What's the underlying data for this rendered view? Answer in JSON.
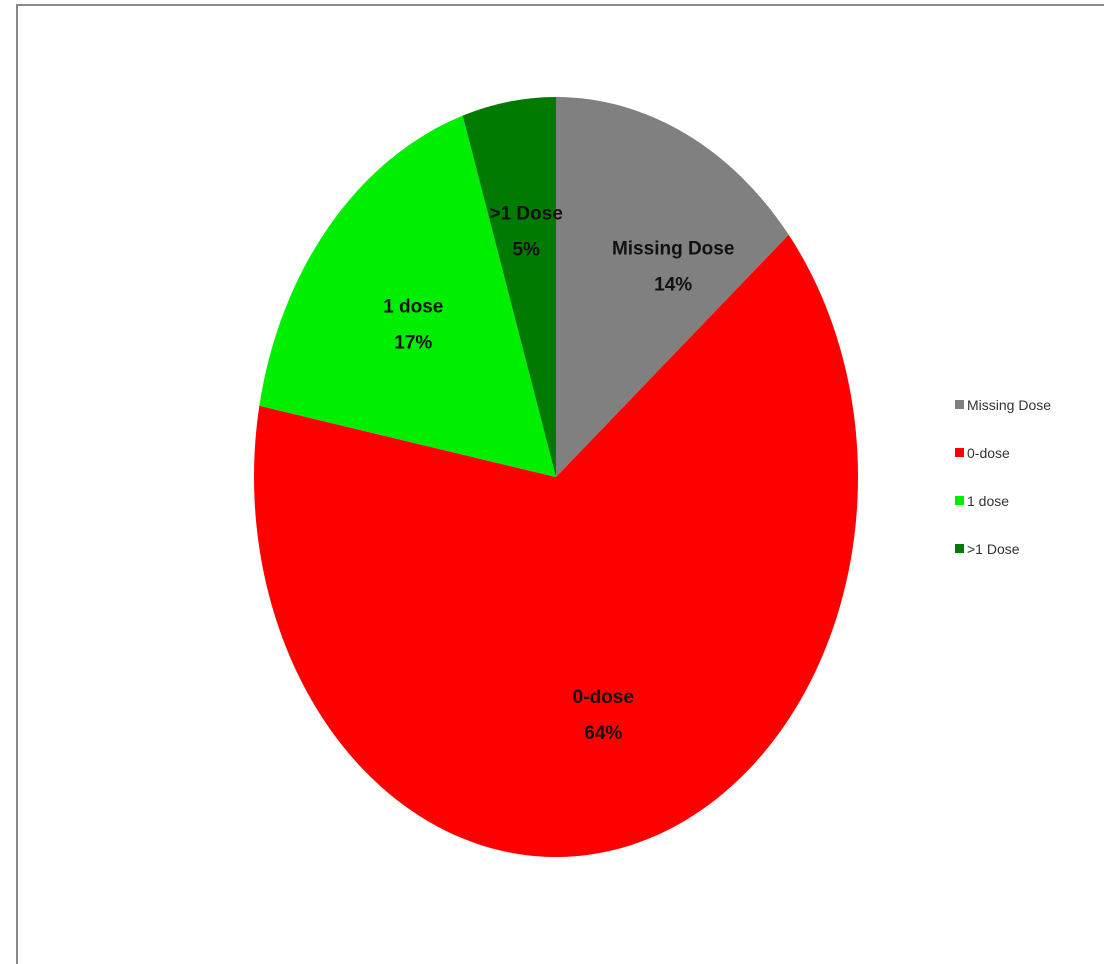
{
  "chart_data": {
    "type": "pie",
    "title": "",
    "start_angle_deg": 0,
    "direction": "clockwise",
    "legend_position": "right",
    "slices": [
      {
        "label": "Missing Dose",
        "value": 14,
        "percent_label": "14%",
        "color": "#808080"
      },
      {
        "label": "0-dose",
        "value": 64,
        "percent_label": "64%",
        "color": "#ff0000"
      },
      {
        "label": "1 dose",
        "value": 17,
        "percent_label": "17%",
        "color": "#00ee00"
      },
      {
        "label": ">1 Dose",
        "value": 5,
        "percent_label": "5%",
        "color": "#007a00"
      }
    ]
  }
}
